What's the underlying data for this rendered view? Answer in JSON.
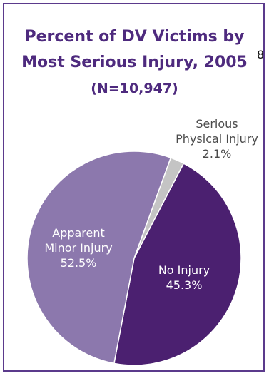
{
  "title_line1": "Percent of DV Victims by",
  "title_line2": "Most Serious Injury, 2005",
  "footnote_marker": "8",
  "subtitle": "(N=10,947)",
  "colors": {
    "title": "#4e2a7e",
    "border": "#5b3a8c",
    "no_injury": "#4b2070",
    "minor_injury": "#8c78ad",
    "serious_injury": "#c4c4c4"
  },
  "chart_data": {
    "type": "pie",
    "title": "Percent of DV Victims by Most Serious Injury, 2005",
    "subtitle": "(N=10,947)",
    "slices": [
      {
        "label": "No Injury",
        "value": 45.3,
        "display": "45.3%",
        "color": "#4b2070"
      },
      {
        "label": "Apparent Minor Injury",
        "value": 52.5,
        "display": "52.5%",
        "color": "#8c78ad"
      },
      {
        "label": "Serious Physical Injury",
        "value": 2.1,
        "display": "2.1%",
        "color": "#c4c4c4"
      }
    ]
  }
}
